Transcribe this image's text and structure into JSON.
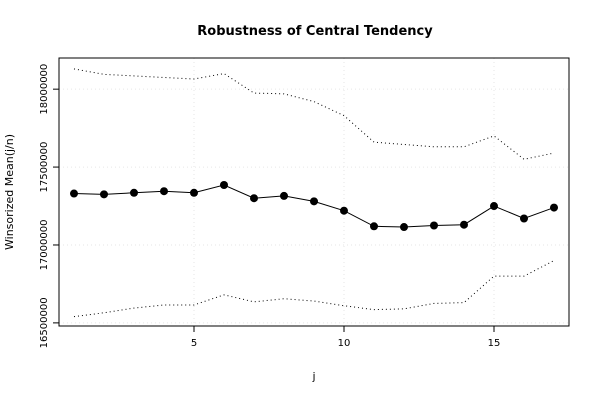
{
  "chart_data": {
    "type": "line",
    "title": "Robustness of Central Tendency",
    "xlabel": "j",
    "ylabel": "Winsorized Mean(j/n)",
    "xlim": [
      0.5,
      17.5
    ],
    "ylim": [
      16480000,
      18200000
    ],
    "x_ticks": [
      5,
      10,
      15
    ],
    "y_ticks": [
      16500000,
      17000000,
      17500000,
      18000000
    ],
    "x_tick_labels": [
      "5",
      "10",
      "15"
    ],
    "y_tick_labels": [
      "16500000",
      "17000000",
      "17500000",
      "18000000"
    ],
    "grid": true,
    "x": [
      1,
      2,
      3,
      4,
      5,
      6,
      7,
      8,
      9,
      10,
      11,
      12,
      13,
      14,
      15,
      16,
      17
    ],
    "series": [
      {
        "role": "mean",
        "style": "solid-with-points",
        "values": [
          17330000,
          17325000,
          17335000,
          17345000,
          17335000,
          17385000,
          17300000,
          17315000,
          17280000,
          17220000,
          17120000,
          17115000,
          17125000,
          17130000,
          17250000,
          17170000,
          17240000
        ]
      },
      {
        "role": "upper",
        "style": "dotted",
        "values": [
          18130000,
          18095000,
          18085000,
          18075000,
          18065000,
          18100000,
          17975000,
          17970000,
          17920000,
          17830000,
          17660000,
          17645000,
          17630000,
          17630000,
          17700000,
          17550000,
          17590000
        ]
      },
      {
        "role": "lower",
        "style": "dotted",
        "values": [
          16540000,
          16565000,
          16595000,
          16615000,
          16615000,
          16680000,
          16635000,
          16655000,
          16640000,
          16610000,
          16585000,
          16590000,
          16625000,
          16630000,
          16800000,
          16800000,
          16900000
        ]
      }
    ]
  }
}
